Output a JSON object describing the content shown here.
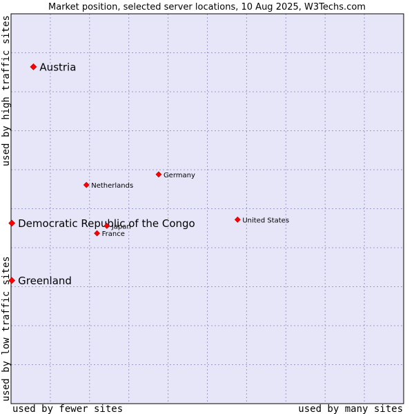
{
  "chart_data": {
    "type": "scatter",
    "title": "Market position, selected server locations, 10 Aug 2025, W3Techs.com",
    "xlabel_left": "used by fewer sites",
    "xlabel_right": "used by many sites",
    "ylabel_bottom": "used by low traffic sites",
    "ylabel_top": "used by high traffic sites",
    "xlim": [
      0,
      100
    ],
    "ylim": [
      0,
      100
    ],
    "grid": true,
    "colors": {
      "plot_bg": "#e6e6f8",
      "marker": "#ff0000",
      "frame": "#000000"
    },
    "points": [
      {
        "name": "Austria",
        "x": 5.7,
        "y": 86.4,
        "emphasis": true
      },
      {
        "name": "Germany",
        "x": 37.6,
        "y": 58.8,
        "emphasis": false
      },
      {
        "name": "Netherlands",
        "x": 19.2,
        "y": 56.1,
        "emphasis": false
      },
      {
        "name": "United States",
        "x": 57.7,
        "y": 47.2,
        "emphasis": false
      },
      {
        "name": "Democratic Republic of the Congo",
        "x": 0.2,
        "y": 46.3,
        "emphasis": true
      },
      {
        "name": "Japan",
        "x": 24.4,
        "y": 45.6,
        "emphasis": false
      },
      {
        "name": "France",
        "x": 21.9,
        "y": 43.7,
        "emphasis": false
      },
      {
        "name": "Greenland",
        "x": 0.2,
        "y": 31.6,
        "emphasis": true
      }
    ]
  }
}
